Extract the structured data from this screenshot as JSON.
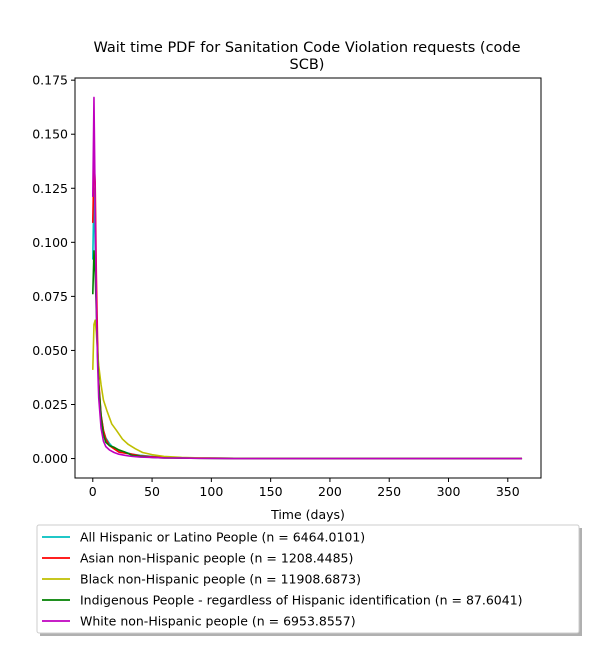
{
  "chart_data": {
    "type": "line",
    "title_line1": "Wait time PDF for Sanitation Code Violation  requests (code",
    "title_line2": "SCB)",
    "xlabel": "Time (days)",
    "ylabel": "",
    "xlim": [
      -15,
      378
    ],
    "ylim": [
      -0.009,
      0.176
    ],
    "xticks": [
      0,
      50,
      100,
      150,
      200,
      250,
      300,
      350
    ],
    "yticks": [
      0.0,
      0.025,
      0.05,
      0.075,
      0.1,
      0.125,
      0.15,
      0.175
    ],
    "xtick_labels": [
      "0",
      "50",
      "100",
      "150",
      "200",
      "250",
      "300",
      "350"
    ],
    "ytick_labels": [
      "0.000",
      "0.025",
      "0.050",
      "0.075",
      "0.100",
      "0.125",
      "0.150",
      "0.175"
    ],
    "grid": false,
    "legend_position": "below plot",
    "series": [
      {
        "name": "All Hispanic or Latino People (n = 6464.0101)",
        "color": "#00bfbf",
        "x": [
          0,
          1,
          2,
          3,
          4,
          5,
          7,
          9,
          11,
          14,
          18,
          22,
          27,
          33,
          40,
          50,
          60,
          75,
          90,
          120,
          180,
          240,
          300,
          362
        ],
        "y": [
          0.092,
          0.125,
          0.098,
          0.074,
          0.05,
          0.034,
          0.02,
          0.013,
          0.0095,
          0.007,
          0.0045,
          0.0035,
          0.003,
          0.002,
          0.0015,
          0.001,
          0.0006,
          0.0003,
          0.0002,
          0.0001,
          0.0,
          0.0,
          0.0,
          0.0
        ]
      },
      {
        "name": "Asian non-Hispanic people (n = 1208.4485)",
        "color": "#ff0000",
        "x": [
          0,
          1,
          2,
          3,
          4,
          5,
          7,
          9,
          11,
          14,
          18,
          22,
          27,
          33,
          40,
          50,
          60,
          75,
          90,
          120,
          180,
          240,
          300,
          362
        ],
        "y": [
          0.109,
          0.138,
          0.128,
          0.085,
          0.055,
          0.036,
          0.02,
          0.013,
          0.009,
          0.006,
          0.0045,
          0.003,
          0.0025,
          0.002,
          0.0012,
          0.0008,
          0.0005,
          0.0003,
          0.0002,
          0.0001,
          0.0,
          0.0,
          0.0,
          0.0
        ]
      },
      {
        "name": "Black non-Hispanic people (n = 11908.6873)",
        "color": "#bfbf00",
        "x": [
          0,
          1,
          2,
          3,
          4,
          5,
          7,
          9,
          12,
          16,
          20,
          25,
          30,
          36,
          42,
          50,
          60,
          75,
          90,
          120,
          180,
          240,
          300,
          362
        ],
        "y": [
          0.041,
          0.062,
          0.064,
          0.058,
          0.05,
          0.043,
          0.034,
          0.027,
          0.022,
          0.016,
          0.013,
          0.009,
          0.0065,
          0.0045,
          0.0028,
          0.0018,
          0.001,
          0.0005,
          0.0003,
          0.0001,
          0.0,
          0.0,
          0.0,
          0.0
        ]
      },
      {
        "name": "Indigenous People - regardless of Hispanic identification (n = 87.6041)",
        "color": "#008000",
        "x": [
          0,
          1,
          2,
          3,
          4,
          5,
          7,
          9,
          11,
          14,
          18,
          22,
          27,
          33,
          40,
          50,
          60,
          75,
          90,
          120,
          180,
          240,
          300,
          362
        ],
        "y": [
          0.076,
          0.096,
          0.086,
          0.068,
          0.049,
          0.034,
          0.019,
          0.011,
          0.0075,
          0.006,
          0.0052,
          0.004,
          0.003,
          0.0015,
          0.001,
          0.0005,
          0.0003,
          0.0002,
          0.0001,
          0.0,
          0.0,
          0.0,
          0.0,
          0.0
        ]
      },
      {
        "name": "White non-Hispanic people (n = 6953.8557)",
        "color": "#bf00bf",
        "x": [
          0,
          1,
          2,
          3,
          4,
          5,
          7,
          9,
          11,
          14,
          18,
          22,
          27,
          33,
          40,
          50,
          60,
          75,
          90,
          120,
          180,
          240,
          300,
          362
        ],
        "y": [
          0.121,
          0.167,
          0.118,
          0.072,
          0.045,
          0.028,
          0.014,
          0.008,
          0.0055,
          0.004,
          0.0028,
          0.002,
          0.0015,
          0.001,
          0.0007,
          0.0005,
          0.0003,
          0.0002,
          0.0001,
          0.0,
          0.0,
          0.0,
          0.0,
          0.0
        ]
      }
    ]
  }
}
